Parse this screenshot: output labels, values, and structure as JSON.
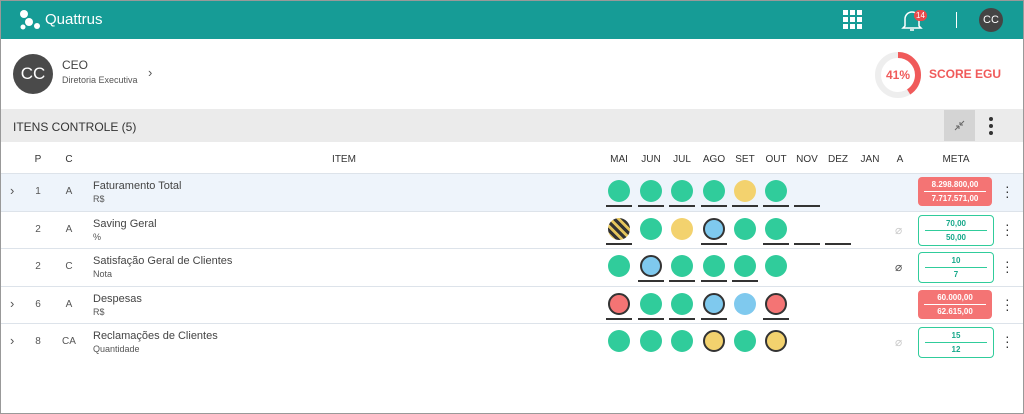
{
  "header": {
    "brand": "Quattrus",
    "notifications": "14",
    "avatar": "CC"
  },
  "profile": {
    "avatar": "CC",
    "role": "CEO",
    "department": "Diretoria Executiva"
  },
  "score": {
    "value": 41,
    "label": "41%",
    "title": "SCORE EGU"
  },
  "section": {
    "title": "ITENS CONTROLE (5)"
  },
  "table": {
    "columns": [
      "P",
      "C",
      "ITEM",
      "MAI",
      "JUN",
      "JUL",
      "AGO",
      "SET",
      "OUT",
      "NOV",
      "DEZ",
      "JAN",
      "A",
      "META"
    ],
    "rows": [
      {
        "expandable": true,
        "p": "1",
        "c": "A",
        "name": "Faturamento Total",
        "unit": "R$",
        "attachment": null,
        "meta_status": "red",
        "meta": [
          "8.298.800,00",
          "7.717.571,00"
        ],
        "months": [
          {
            "status": "green",
            "ring": false,
            "underline": true
          },
          {
            "status": "green",
            "ring": false,
            "underline": true
          },
          {
            "status": "green",
            "ring": false,
            "underline": true
          },
          {
            "status": "green",
            "ring": false,
            "underline": true
          },
          {
            "status": "yellow",
            "ring": false,
            "underline": true
          },
          {
            "status": "green",
            "ring": false,
            "underline": true
          },
          {
            "status": null,
            "ring": false,
            "underline": true
          },
          null,
          null
        ]
      },
      {
        "expandable": false,
        "p": "2",
        "c": "A",
        "name": "Saving Geral",
        "unit": "%",
        "attachment": "faint",
        "meta_status": "green",
        "meta": [
          "70,00",
          "50,00"
        ],
        "months": [
          {
            "status": "striped",
            "ring": false,
            "underline": true
          },
          {
            "status": "green",
            "ring": false,
            "underline": false
          },
          {
            "status": "yellow",
            "ring": false,
            "underline": false
          },
          {
            "status": "blue",
            "ring": true,
            "underline": true
          },
          {
            "status": "green",
            "ring": false,
            "underline": false
          },
          {
            "status": "green",
            "ring": false,
            "underline": true
          },
          {
            "status": null,
            "ring": false,
            "underline": true
          },
          {
            "status": null,
            "ring": false,
            "underline": true
          },
          null
        ]
      },
      {
        "expandable": false,
        "p": "2",
        "c": "C",
        "name": "Satisfação Geral de Clientes",
        "unit": "Nota",
        "attachment": "active",
        "meta_status": "green",
        "meta": [
          "10",
          "7"
        ],
        "months": [
          {
            "status": "green",
            "ring": false,
            "underline": false
          },
          {
            "status": "blue",
            "ring": true,
            "underline": true
          },
          {
            "status": "green",
            "ring": false,
            "underline": true
          },
          {
            "status": "green",
            "ring": false,
            "underline": true
          },
          {
            "status": "green",
            "ring": false,
            "underline": true
          },
          {
            "status": "green",
            "ring": false,
            "underline": false
          },
          null,
          null,
          null
        ]
      },
      {
        "expandable": true,
        "p": "6",
        "c": "A",
        "name": "Despesas",
        "unit": "R$",
        "attachment": null,
        "meta_status": "red",
        "meta": [
          "60.000,00",
          "62.615,00"
        ],
        "months": [
          {
            "status": "red",
            "ring": true,
            "underline": true
          },
          {
            "status": "green",
            "ring": false,
            "underline": true
          },
          {
            "status": "green",
            "ring": false,
            "underline": true
          },
          {
            "status": "blue",
            "ring": true,
            "underline": true
          },
          {
            "status": "blue",
            "ring": false,
            "underline": false
          },
          {
            "status": "red",
            "ring": true,
            "underline": true
          },
          null,
          null,
          null
        ]
      },
      {
        "expandable": true,
        "p": "8",
        "c": "CA",
        "name": "Reclamações de Clientes",
        "unit": "Quantidade",
        "attachment": "faint",
        "meta_status": "green",
        "meta": [
          "15",
          "12"
        ],
        "months": [
          {
            "status": "green",
            "ring": false,
            "underline": false
          },
          {
            "status": "green",
            "ring": false,
            "underline": false
          },
          {
            "status": "green",
            "ring": false,
            "underline": false
          },
          {
            "status": "yellow",
            "ring": true,
            "underline": false
          },
          {
            "status": "green",
            "ring": false,
            "underline": false
          },
          {
            "status": "yellow",
            "ring": true,
            "underline": false
          },
          null,
          null,
          null
        ]
      }
    ]
  }
}
